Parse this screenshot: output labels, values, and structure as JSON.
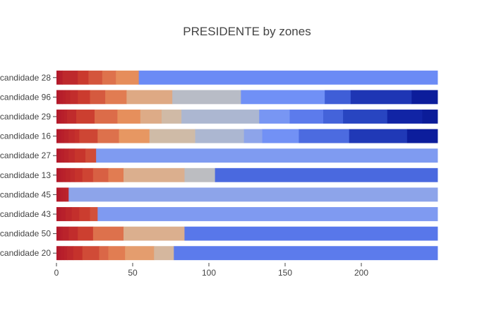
{
  "chart_data": {
    "type": "bar",
    "orientation": "horizontal",
    "barmode": "stack",
    "title": "PRESIDENTE by zones",
    "xlabel": "",
    "ylabel": "",
    "xlim": [
      0,
      250
    ],
    "x_ticks": [
      0,
      50,
      100,
      150,
      200
    ],
    "categories": [
      "candidade 20",
      "candidade 50",
      "candidade 43",
      "candidade 45",
      "candidade 13",
      "candidade 27",
      "candidade 16",
      "candidade 29",
      "candidade 96",
      "candidade 28"
    ],
    "totals": [
      250,
      250,
      250,
      250,
      250,
      250,
      250,
      250,
      250,
      250
    ],
    "segments": {
      "candidade 28": [
        1,
        1,
        2,
        10,
        7,
        9,
        9,
        15,
        196
      ],
      "candidade 96": [
        2,
        2,
        2,
        3,
        5,
        8,
        10,
        14,
        30,
        45,
        55,
        17,
        40,
        17
      ],
      "candidade 29": [
        1,
        2,
        2,
        2,
        6,
        12,
        15,
        15,
        14,
        13,
        51,
        20,
        22,
        13,
        29,
        23,
        10
      ],
      "candidade 16": [
        1,
        2,
        2,
        3,
        4,
        3,
        12,
        14,
        20,
        30,
        32,
        12,
        24,
        33,
        38,
        20
      ],
      "candidade 27": [
        1,
        1,
        1,
        2,
        3,
        4,
        7,
        7,
        224
      ],
      "candidade 13": [
        1,
        1,
        1,
        1,
        2,
        3,
        3,
        5,
        7,
        10,
        10,
        40,
        20,
        146
      ],
      "candidade 45": [
        1,
        1,
        1,
        1,
        2,
        2,
        242
      ],
      "candidade 43": [
        1,
        1,
        1,
        3,
        4,
        5,
        7,
        5,
        223
      ],
      "candidade 50": [
        1,
        1,
        1,
        1,
        4,
        6,
        10,
        20,
        40,
        166
      ],
      "candidade 20": [
        1,
        1,
        1,
        2,
        2,
        4,
        6,
        11,
        6,
        11,
        19,
        13,
        173
      ]
    },
    "colorscale": [
      "#b2182b",
      "#c9372c",
      "#dd6f4b",
      "#e8955f",
      "#d9b497",
      "#c8c0b4",
      "#b6bcc8",
      "#9fb0dd",
      "#86a0ee",
      "#6e8ef7",
      "#5877ea",
      "#4160d8",
      "#2b48c4",
      "#1a31b0",
      "#0d1fa0",
      "#0a1a96"
    ],
    "grid": false,
    "legend": "none"
  }
}
